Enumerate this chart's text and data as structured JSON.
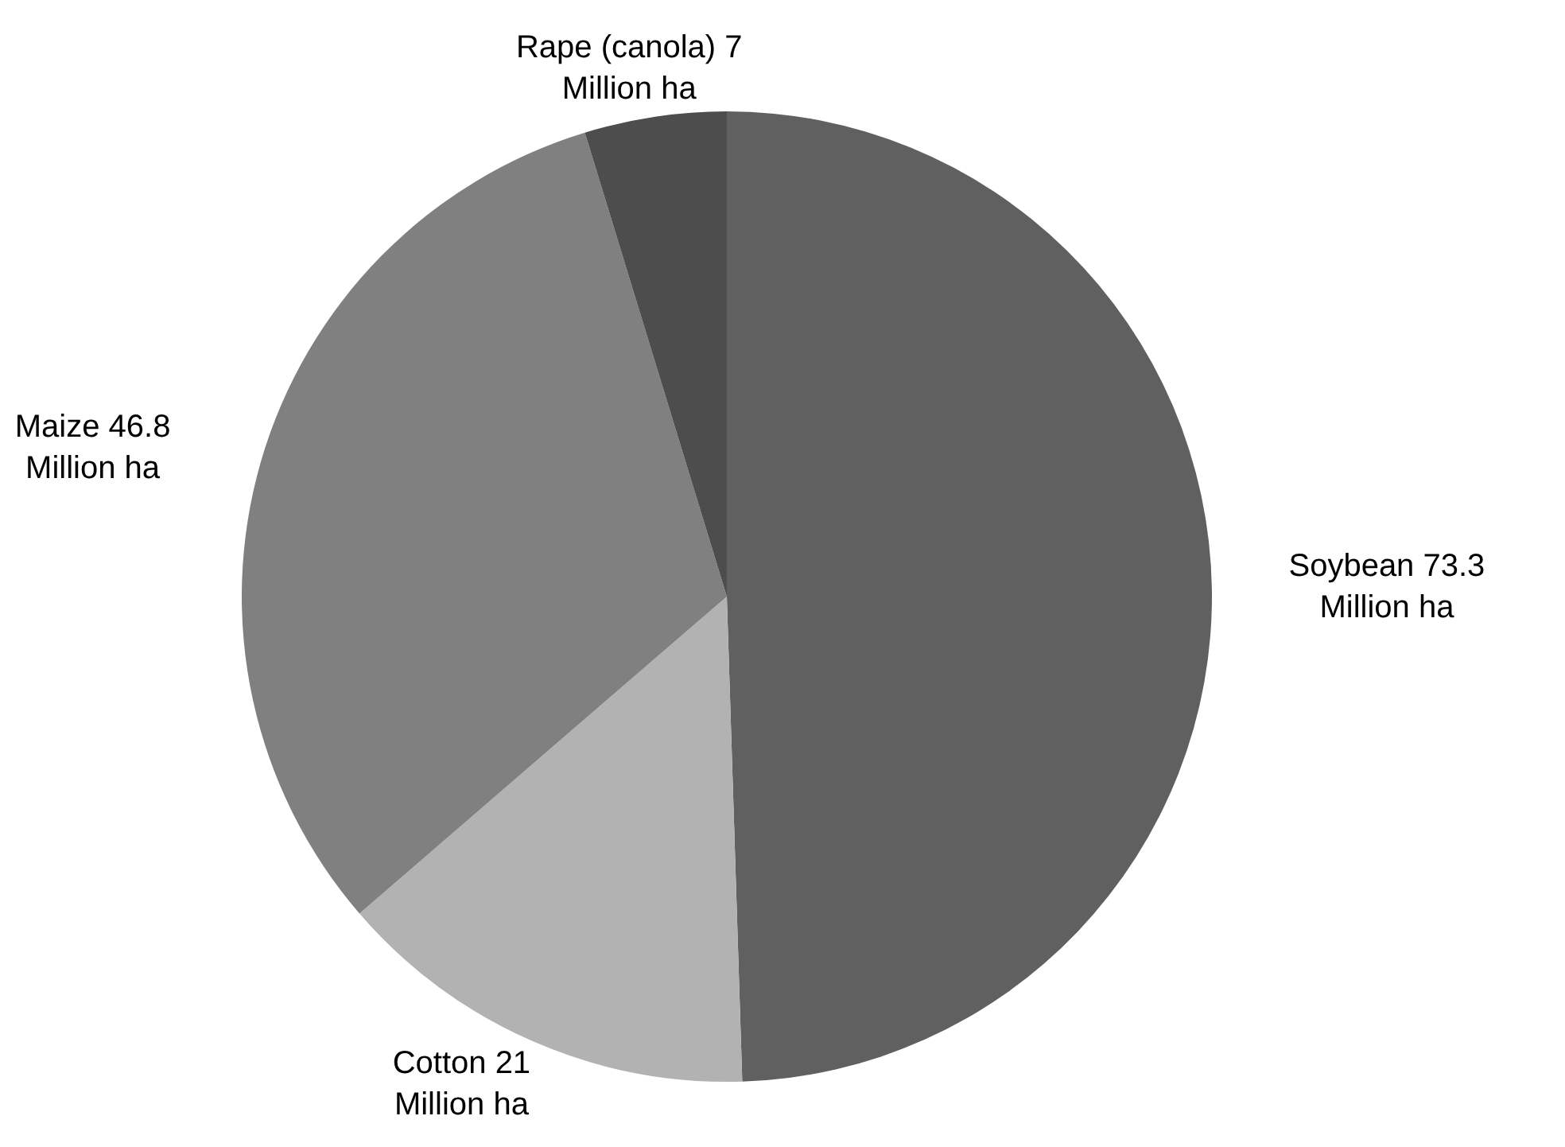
{
  "chart_data": {
    "type": "pie",
    "categories": [
      "Soybean",
      "Cotton",
      "Maize",
      "Rape (canola)"
    ],
    "values": [
      73.3,
      21,
      46.8,
      7
    ],
    "colors": [
      "#606060",
      "#b2b2b2",
      "#808080",
      "#4d4d4d"
    ],
    "value_labels": [
      "73.3 Million ha",
      "21 Million ha",
      "46.8 Million ha",
      "7 Million ha"
    ],
    "legend": false
  }
}
